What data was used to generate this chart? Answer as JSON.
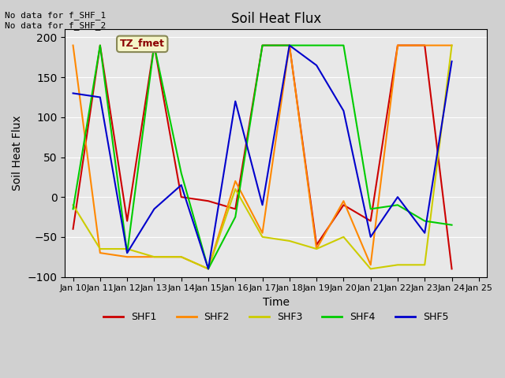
{
  "title": "Soil Heat Flux",
  "xlabel": "Time",
  "ylabel": "Soil Heat Flux",
  "ylim": [
    -100,
    210
  ],
  "yticks": [
    -100,
    -50,
    0,
    50,
    100,
    150,
    200
  ],
  "annotation_text": "No data for f_SHF_1\nNo data for f_SHF_2",
  "tz_label": "TZ_fmet",
  "bg_color": "#e8e8e8",
  "plot_bg": "#e8e8e8",
  "series_colors": {
    "SHF1": "#cc0000",
    "SHF2": "#ff8800",
    "SHF3": "#cccc00",
    "SHF4": "#00cc00",
    "SHF5": "#0000cc"
  },
  "x_dates": [
    "Jan 10",
    "Jan 11",
    "Jan 12",
    "Jan 13",
    "Jan 14",
    "Jan 15",
    "Jan 16",
    "Jan 17",
    "Jan 18",
    "Jan 19",
    "Jan 20",
    "Jan 21",
    "Jan 22",
    "Jan 23",
    "Jan 24",
    "Jan 25"
  ],
  "x_values": [
    0,
    1,
    2,
    3,
    4,
    5,
    6,
    7,
    8,
    9,
    10,
    11,
    12,
    13,
    14,
    15
  ],
  "SHF1": [
    -40,
    190,
    -30,
    190,
    0,
    -5,
    -15,
    190,
    190,
    -60,
    -10,
    -30,
    190,
    190,
    -90,
    null
  ],
  "SHF2": [
    190,
    -70,
    -75,
    -75,
    -75,
    -90,
    20,
    -45,
    190,
    -65,
    -5,
    -85,
    190,
    190,
    190,
    null
  ],
  "SHF3": [
    -10,
    -65,
    -65,
    -75,
    -75,
    -90,
    10,
    -50,
    -55,
    -65,
    -50,
    -90,
    -85,
    -85,
    190,
    null
  ],
  "SHF4": [
    -15,
    190,
    -70,
    190,
    30,
    -90,
    -25,
    190,
    190,
    190,
    190,
    -15,
    -10,
    -30,
    -35,
    null
  ],
  "SHF5": [
    130,
    125,
    -70,
    -15,
    15,
    -90,
    120,
    -10,
    190,
    165,
    108,
    -50,
    0,
    -45,
    170,
    null
  ]
}
